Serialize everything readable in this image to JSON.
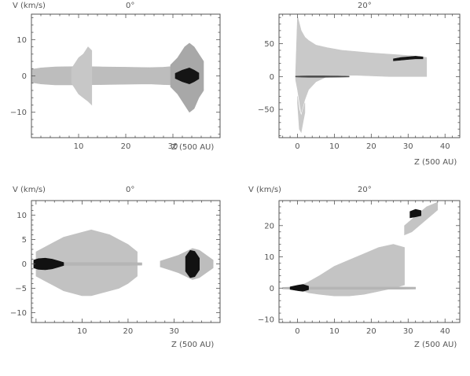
{
  "chart_data": [
    {
      "type": "area",
      "title": "0°",
      "ylabel": "V (km/s)",
      "xlabel": "Z (500 AU)",
      "xlim": [
        0,
        40
      ],
      "ylim": [
        -17,
        17
      ],
      "xticks": [
        10,
        20,
        30
      ],
      "yticks": [
        -10,
        0,
        10
      ],
      "series": [
        {
          "x": [
            0,
            2,
            5,
            10,
            15,
            20,
            25,
            28,
            30
          ],
          "lo": [
            -1.8,
            -2.2,
            -2.5,
            -2.5,
            -2.4,
            -2.3,
            -2.2,
            -2.4,
            -2.5
          ],
          "hi": [
            1.8,
            2.2,
            2.5,
            2.6,
            2.5,
            2.4,
            2.3,
            2.4,
            2.6
          ],
          "shade": "#bdbdbd"
        },
        {
          "x": [
            8.5,
            10,
            11,
            12,
            12.8
          ],
          "lo": [
            -2,
            -5,
            -6,
            -7,
            -8
          ],
          "hi": [
            2,
            5,
            6,
            8,
            7
          ],
          "shade": "#c7c7c7"
        },
        {
          "x": [
            29.5,
            31,
            32.5,
            33.5,
            34.5,
            35.5,
            36.5
          ],
          "lo": [
            -3,
            -5,
            -8,
            -10,
            -9,
            -6,
            -4
          ],
          "hi": [
            3,
            5,
            8,
            9,
            8,
            6,
            4
          ],
          "shade": "#a8a8a8"
        },
        {
          "x": [
            30.5,
            32,
            33.5,
            34.5,
            35.5
          ],
          "lo": [
            -0.7,
            -1.6,
            -2.2,
            -1.6,
            -0.8
          ],
          "hi": [
            0.7,
            1.6,
            2.2,
            1.6,
            0.8
          ],
          "shade": "#151515"
        }
      ]
    },
    {
      "type": "area",
      "title": "20°",
      "ylabel": "",
      "xlabel": "Z (500 AU)",
      "xlim": [
        -5,
        44
      ],
      "ylim": [
        -93,
        95
      ],
      "xticks": [
        0,
        10,
        20,
        30,
        40
      ],
      "yticks": [
        -50,
        0,
        50
      ],
      "series": [
        {
          "x": [
            -0.5,
            0,
            1,
            2,
            3,
            5,
            8,
            12,
            16,
            20,
            25,
            30,
            34,
            35
          ],
          "lo": [
            -5,
            -20,
            -55,
            -35,
            -20,
            -8,
            0,
            2,
            2,
            1,
            0,
            0,
            0,
            0
          ],
          "hi": [
            5,
            92,
            70,
            60,
            55,
            48,
            44,
            40,
            38,
            36,
            34,
            32,
            30,
            29
          ],
          "shade": "#c9c9c9"
        },
        {
          "x": [
            -0.5,
            1,
            3,
            5,
            7,
            9,
            11,
            13,
            14
          ],
          "lo": [
            -0.6,
            -0.9,
            -1.1,
            -1.1,
            -1.1,
            -1.0,
            -0.9,
            -0.8,
            -0.6
          ],
          "hi": [
            0.6,
            0.9,
            1.1,
            1.1,
            1.1,
            1.0,
            0.9,
            0.8,
            0.6
          ],
          "shade": "#4a4a4a"
        },
        {
          "x": [
            0,
            0.5,
            1,
            1.5,
            2
          ],
          "lo": [
            -40,
            -80,
            -85,
            -70,
            -55
          ],
          "hi": [
            -30,
            -50,
            -60,
            -50,
            -40
          ],
          "shade": "#c9c9c9"
        },
        {
          "x": [
            26,
            28,
            30,
            32,
            34
          ],
          "lo": [
            24,
            25,
            26,
            27,
            27
          ],
          "hi": [
            27,
            29,
            30,
            31,
            30
          ],
          "shade": "#161616"
        }
      ]
    },
    {
      "type": "area",
      "title": "0°",
      "ylabel": "V (km/s)",
      "xlabel": "Z (500 AU)",
      "xlim": [
        -1,
        40
      ],
      "ylim": [
        -12,
        13
      ],
      "xticks": [
        10,
        20,
        30
      ],
      "yticks": [
        -10,
        -5,
        0,
        5,
        10
      ],
      "series": [
        {
          "x": [
            0,
            2,
            4,
            6,
            8,
            10,
            12,
            14,
            16,
            18,
            20,
            22
          ],
          "lo": [
            -2.5,
            -3.5,
            -4.5,
            -5.5,
            -6,
            -6.5,
            -6.5,
            -6,
            -5.5,
            -5,
            -4,
            -2.5
          ],
          "hi": [
            2.5,
            3.5,
            4.5,
            5.5,
            6,
            6.5,
            7,
            6.5,
            6,
            5,
            4,
            2.5
          ],
          "shade": "#c2c2c2"
        },
        {
          "x": [
            -0.5,
            2,
            5,
            10,
            15,
            20,
            23
          ],
          "lo": [
            -0.25,
            -0.3,
            -0.3,
            -0.3,
            -0.3,
            -0.3,
            -0.25
          ],
          "hi": [
            0.25,
            0.3,
            0.3,
            0.3,
            0.3,
            0.3,
            0.25
          ],
          "shade": "#b5b5b5"
        },
        {
          "x": [
            -0.5,
            0.5,
            2,
            3.5,
            5,
            6
          ],
          "lo": [
            -0.8,
            -1.1,
            -1.2,
            -1.0,
            -0.6,
            -0.3
          ],
          "hi": [
            0.8,
            1.1,
            1.2,
            1.0,
            0.6,
            0.3
          ],
          "shade": "#111111"
        },
        {
          "x": [
            27,
            29,
            31,
            32.5,
            34,
            35.5,
            37,
            38.5
          ],
          "lo": [
            -0.6,
            -1.2,
            -1.8,
            -2.5,
            -3.2,
            -2.8,
            -1.8,
            -0.8
          ],
          "hi": [
            0.6,
            1.2,
            1.8,
            2.5,
            3.2,
            2.8,
            1.8,
            0.8
          ],
          "shade": "#bdbdbd"
        },
        {
          "x": [
            32.5,
            33.5,
            34.5,
            35.5
          ],
          "lo": [
            -1.5,
            -2.8,
            -2.6,
            -1.2
          ],
          "hi": [
            1.5,
            2.8,
            2.6,
            1.2
          ],
          "shade": "#121212"
        }
      ]
    },
    {
      "type": "area",
      "title": "20°",
      "ylabel": "V (km/s)",
      "xlabel": "Z (500 AU)",
      "xlim": [
        -5,
        44
      ],
      "ylim": [
        -11,
        28
      ],
      "xticks": [
        0,
        10,
        20,
        30,
        40
      ],
      "yticks": [
        -10,
        0,
        10,
        20
      ],
      "series": [
        {
          "x": [
            0,
            3,
            6,
            10,
            14,
            18,
            22,
            26,
            29
          ],
          "lo": [
            -0.3,
            -1.5,
            -2,
            -2.5,
            -2.5,
            -2,
            -1,
            0,
            1
          ],
          "hi": [
            0.3,
            2,
            4,
            7,
            9,
            11,
            13,
            14,
            13
          ],
          "shade": "#c4c4c4"
        },
        {
          "x": [
            -4,
            -1,
            2,
            8,
            15,
            22,
            28,
            32
          ],
          "lo": [
            -0.25,
            -0.35,
            -0.35,
            -0.35,
            -0.35,
            -0.35,
            -0.35,
            -0.3
          ],
          "hi": [
            0.25,
            0.35,
            0.35,
            0.35,
            0.35,
            0.35,
            0.35,
            0.3
          ],
          "shade": "#b5b5b5"
        },
        {
          "x": [
            -2,
            0,
            1.5,
            3
          ],
          "lo": [
            -0.4,
            -0.8,
            -1.0,
            -0.5
          ],
          "hi": [
            0.4,
            0.9,
            1.2,
            0.6
          ],
          "shade": "#111111"
        },
        {
          "x": [
            29,
            31,
            33,
            35,
            37,
            38
          ],
          "lo": [
            17,
            18,
            20,
            22,
            24,
            25
          ],
          "hi": [
            20,
            22,
            24,
            26,
            27,
            27.5
          ],
          "shade": "#c4c4c4"
        },
        {
          "x": [
            30.5,
            32,
            33.5
          ],
          "lo": [
            22.5,
            22.8,
            23.2
          ],
          "hi": [
            24.5,
            25.2,
            24.8
          ],
          "shade": "#131313"
        }
      ]
    }
  ]
}
